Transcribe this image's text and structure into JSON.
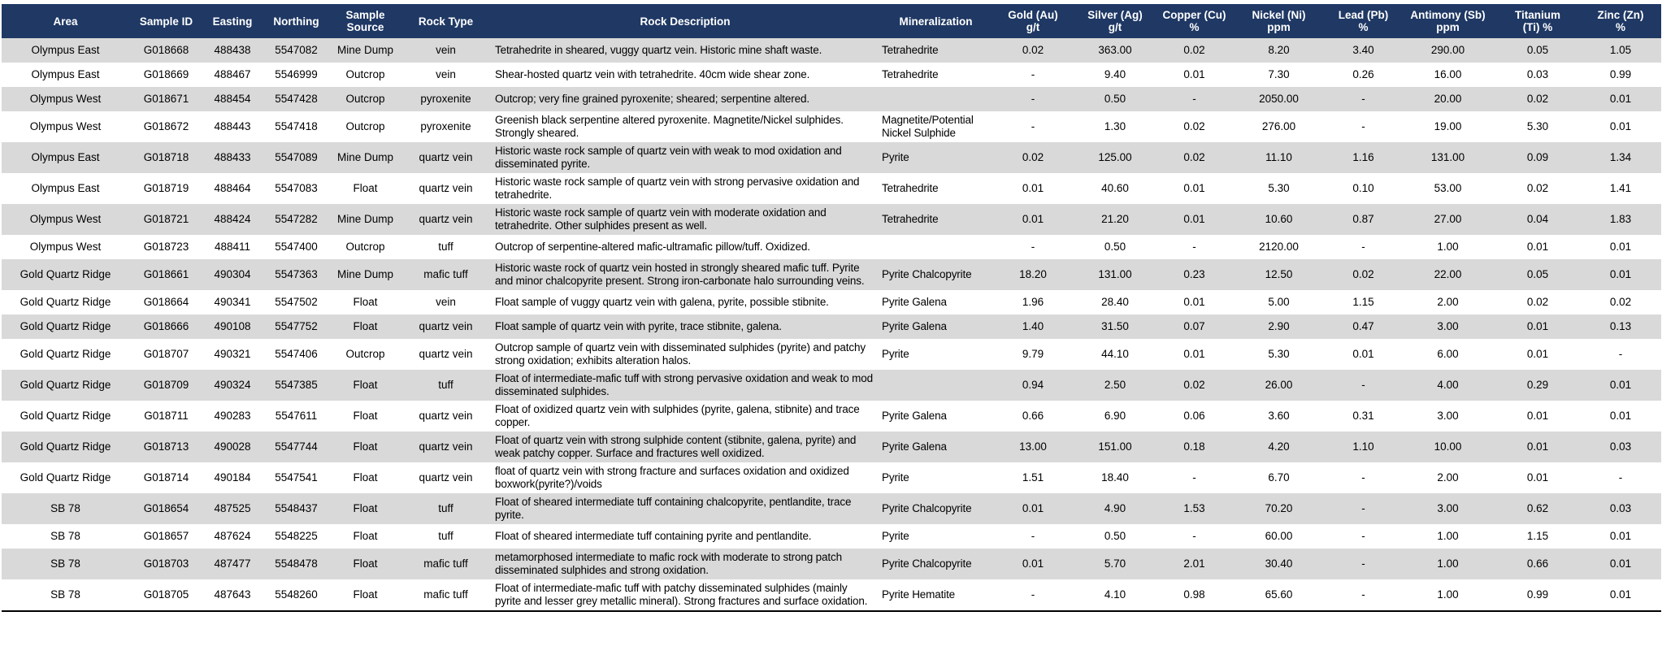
{
  "table": {
    "headers": [
      [
        "Area"
      ],
      [
        "Sample ID"
      ],
      [
        "Easting"
      ],
      [
        "Northing"
      ],
      [
        "Sample",
        "Source"
      ],
      [
        "Rock Type"
      ],
      [
        "Rock Description"
      ],
      [
        "Mineralization"
      ],
      [
        "Gold (Au)",
        "g/t"
      ],
      [
        "Silver (Ag)",
        "g/t"
      ],
      [
        "Copper (Cu)",
        "%"
      ],
      [
        "Nickel (Ni)",
        "ppm"
      ],
      [
        "Lead (Pb)",
        "%"
      ],
      [
        "Antimony (Sb)",
        "ppm"
      ],
      [
        "Titanium",
        "(Ti) %"
      ],
      [
        "Zinc (Zn)",
        "%"
      ]
    ],
    "rows": [
      [
        "Olympus East",
        "G018668",
        "488438",
        "5547082",
        "Mine Dump",
        "vein",
        "Tetrahedrite in sheared, vuggy quartz vein. Historic mine shaft waste.",
        "Tetrahedrite",
        "0.02",
        "363.00",
        "0.02",
        "8.20",
        "3.40",
        "290.00",
        "0.05",
        "1.05"
      ],
      [
        "Olympus East",
        "G018669",
        "488467",
        "5546999",
        "Outcrop",
        "vein",
        "Shear-hosted quartz vein with tetrahedrite. 40cm wide shear zone.",
        "Tetrahedrite",
        "-",
        "9.40",
        "0.01",
        "7.30",
        "0.26",
        "16.00",
        "0.03",
        "0.99"
      ],
      [
        "Olympus West",
        "G018671",
        "488454",
        "5547428",
        "Outcrop",
        "pyroxenite",
        "Outcrop; very fine grained pyroxenite; sheared; serpentine altered.",
        null,
        "-",
        "0.50",
        "-",
        "2050.00",
        "-",
        "20.00",
        "0.02",
        "0.01"
      ],
      [
        "Olympus West",
        "G018672",
        "488443",
        "5547418",
        "Outcrop",
        "pyroxenite",
        "Greenish black serpentine altered pyroxenite. Magnetite/Nickel sulphides. Strongly sheared.",
        "Magnetite/Potential Nickel Sulphide",
        "-",
        "1.30",
        "0.02",
        "276.00",
        "-",
        "19.00",
        "5.30",
        "0.01"
      ],
      [
        "Olympus East",
        "G018718",
        "488433",
        "5547089",
        "Mine Dump",
        "quartz vein",
        "Historic waste rock sample of quartz vein with weak to mod oxidation and disseminated pyrite.",
        "Pyrite",
        "0.02",
        "125.00",
        "0.02",
        "11.10",
        "1.16",
        "131.00",
        "0.09",
        "1.34"
      ],
      [
        "Olympus East",
        "G018719",
        "488464",
        "5547083",
        "Float",
        "quartz vein",
        "Historic waste rock sample of quartz vein with strong pervasive oxidation and tetrahedrite.",
        "Tetrahedrite",
        "0.01",
        "40.60",
        "0.01",
        "5.30",
        "0.10",
        "53.00",
        "0.02",
        "1.41"
      ],
      [
        "Olympus West",
        "G018721",
        "488424",
        "5547282",
        "Mine Dump",
        "quartz vein",
        "Historic waste rock sample of quartz vein with moderate oxidation and tetrahedrite. Other sulphides present as well.",
        "Tetrahedrite",
        "0.01",
        "21.20",
        "0.01",
        "10.60",
        "0.87",
        "27.00",
        "0.04",
        "1.83"
      ],
      [
        "Olympus West",
        "G018723",
        "488411",
        "5547400",
        "Outcrop",
        "tuff",
        "Outcrop of serpentine-altered mafic-ultramafic pillow/tuff. Oxidized.",
        null,
        "-",
        "0.50",
        "-",
        "2120.00",
        "-",
        "1.00",
        "0.01",
        "0.01"
      ],
      [
        "Gold Quartz Ridge",
        "G018661",
        "490304",
        "5547363",
        "Mine Dump",
        "mafic tuff",
        "Historic waste rock of quartz vein hosted in strongly sheared mafic tuff. Pyrite and minor chalcopyrite present. Strong iron-carbonate halo surrounding veins.",
        "Pyrite Chalcopyrite",
        "18.20",
        "131.00",
        "0.23",
        "12.50",
        "0.02",
        "22.00",
        "0.05",
        "0.01"
      ],
      [
        "Gold Quartz Ridge",
        "G018664",
        "490341",
        "5547502",
        "Float",
        "vein",
        "Float sample of vuggy quartz vein with galena, pyrite, possible stibnite.",
        "Pyrite Galena",
        "1.96",
        "28.40",
        "0.01",
        "5.00",
        "1.15",
        "2.00",
        "0.02",
        "0.02"
      ],
      [
        "Gold Quartz Ridge",
        "G018666",
        "490108",
        "5547752",
        "Float",
        "quartz vein",
        "Float sample of quartz vein with pyrite, trace stibnite, galena.",
        "Pyrite Galena",
        "1.40",
        "31.50",
        "0.07",
        "2.90",
        "0.47",
        "3.00",
        "0.01",
        "0.13"
      ],
      [
        "Gold Quartz Ridge",
        "G018707",
        "490321",
        "5547406",
        "Outcrop",
        "quartz vein",
        "Outcrop sample of quartz vein with disseminated sulphides (pyrite) and patchy strong oxidation; exhibits alteration halos.",
        "Pyrite",
        "9.79",
        "44.10",
        "0.01",
        "5.30",
        "0.01",
        "6.00",
        "0.01",
        "-"
      ],
      [
        "Gold Quartz Ridge",
        "G018709",
        "490324",
        "5547385",
        "Float",
        "tuff",
        "Float of intermediate-mafic tuff with strong pervasive oxidation and weak to mod disseminated sulphides.",
        null,
        "0.94",
        "2.50",
        "0.02",
        "26.00",
        "-",
        "4.00",
        "0.29",
        "0.01"
      ],
      [
        "Gold Quartz Ridge",
        "G018711",
        "490283",
        "5547611",
        "Float",
        "quartz vein",
        "Float of oxidized quartz vein with sulphides (pyrite, galena, stibnite) and trace copper.",
        "Pyrite Galena",
        "0.66",
        "6.90",
        "0.06",
        "3.60",
        "0.31",
        "3.00",
        "0.01",
        "0.01"
      ],
      [
        "Gold Quartz Ridge",
        "G018713",
        "490028",
        "5547744",
        "Float",
        "quartz vein",
        "Float of quartz vein with strong sulphide content (stibnite, galena, pyrite) and weak patchy copper. Surface and fractures well oxidized.",
        "Pyrite Galena",
        "13.00",
        "151.00",
        "0.18",
        "4.20",
        "1.10",
        "10.00",
        "0.01",
        "0.03"
      ],
      [
        "Gold Quartz Ridge",
        "G018714",
        "490184",
        "5547541",
        "Float",
        "quartz vein",
        "float of quartz vein with strong fracture and surfaces oxidation and oxidized boxwork(pyrite?)/voids",
        "Pyrite",
        "1.51",
        "18.40",
        "-",
        "6.70",
        "-",
        "2.00",
        "0.01",
        "-"
      ],
      [
        "SB 78",
        "G018654",
        "487525",
        "5548437",
        "Float",
        "tuff",
        "Float of sheared intermediate tuff containing chalcopyrite, pentlandite, trace pyrite.",
        "Pyrite Chalcopyrite",
        "0.01",
        "4.90",
        "1.53",
        "70.20",
        "-",
        "3.00",
        "0.62",
        "0.03"
      ],
      [
        "SB 78",
        "G018657",
        "487624",
        "5548225",
        "Float",
        "tuff",
        "Float of sheared intermediate tuff containing pyrite and pentlandite.",
        "Pyrite",
        "-",
        "0.50",
        "-",
        "60.00",
        "-",
        "1.00",
        "1.15",
        "0.01"
      ],
      [
        "SB 78",
        "G018703",
        "487477",
        "5548478",
        "Float",
        "mafic tuff",
        "metamorphosed intermediate to mafic rock with moderate to strong patch disseminated sulphides and strong oxidation.",
        "Pyrite Chalcopyrite",
        "0.01",
        "5.70",
        "2.01",
        "30.40",
        "-",
        "1.00",
        "0.66",
        "0.01"
      ],
      [
        "SB 78",
        "G018705",
        "487643",
        "5548260",
        "Float",
        "mafic tuff",
        "Float of intermediate-mafic tuff with patchy disseminated sulphides (mainly pyrite and lesser grey metallic mineral). Strong fractures and surface oxidation.",
        "Pyrite Hematite",
        "-",
        "4.10",
        "0.98",
        "65.60",
        "-",
        "1.00",
        "0.99",
        "0.01"
      ]
    ]
  }
}
